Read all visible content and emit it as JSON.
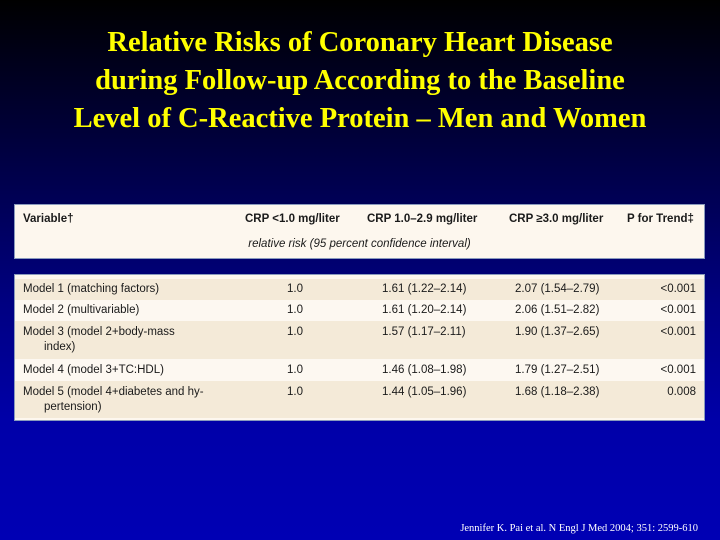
{
  "title": {
    "line1": "Relative Risks of Coronary Heart Disease",
    "line2": "during Follow-up According to the Baseline",
    "line3": "Level of C-Reactive Protein – Men and Women"
  },
  "table": {
    "headers": {
      "variable": "Variable†",
      "crp_low": "CRP <1.0 mg/liter",
      "crp_mid": "CRP 1.0–2.9 mg/liter",
      "crp_high": "CRP ≥3.0 mg/liter",
      "p_trend": "P for Trend‡"
    },
    "subheader": "relative risk (95 percent confidence interval)",
    "rows": [
      {
        "variable": "Model 1 (matching factors)",
        "variable_cont": "",
        "crp_low": "1.0",
        "crp_mid": "1.61 (1.22–2.14)",
        "crp_high": "2.07 (1.54–2.79)",
        "p_trend": "<0.001"
      },
      {
        "variable": "Model 2 (multivariable)",
        "variable_cont": "",
        "crp_low": "1.0",
        "crp_mid": "1.61 (1.20–2.14)",
        "crp_high": "2.06 (1.51–2.82)",
        "p_trend": "<0.001"
      },
      {
        "variable": "Model 3 (model 2+body-mass",
        "variable_cont": "index)",
        "crp_low": "1.0",
        "crp_mid": "1.57 (1.17–2.11)",
        "crp_high": "1.90 (1.37–2.65)",
        "p_trend": "<0.001"
      },
      {
        "variable": "Model 4 (model 3+TC:HDL)",
        "variable_cont": "",
        "crp_low": "1.0",
        "crp_mid": "1.46 (1.08–1.98)",
        "crp_high": "1.79 (1.27–2.51)",
        "p_trend": "<0.001"
      },
      {
        "variable": "Model 5 (model 4+diabetes and hy-",
        "variable_cont": "pertension)",
        "crp_low": "1.0",
        "crp_mid": "1.44 (1.05–1.96)",
        "crp_high": "1.68 (1.18–2.38)",
        "p_trend": "0.008"
      }
    ]
  },
  "citation": "Jennifer K. Pai et al. N Engl J Med 2004; 351: 2599-610",
  "colors": {
    "title": "#ffff00",
    "background_top": "#000000",
    "background_bottom": "#0000b4",
    "row_shaded": "#f4ead8",
    "row_plain": "#fdf8f1"
  }
}
